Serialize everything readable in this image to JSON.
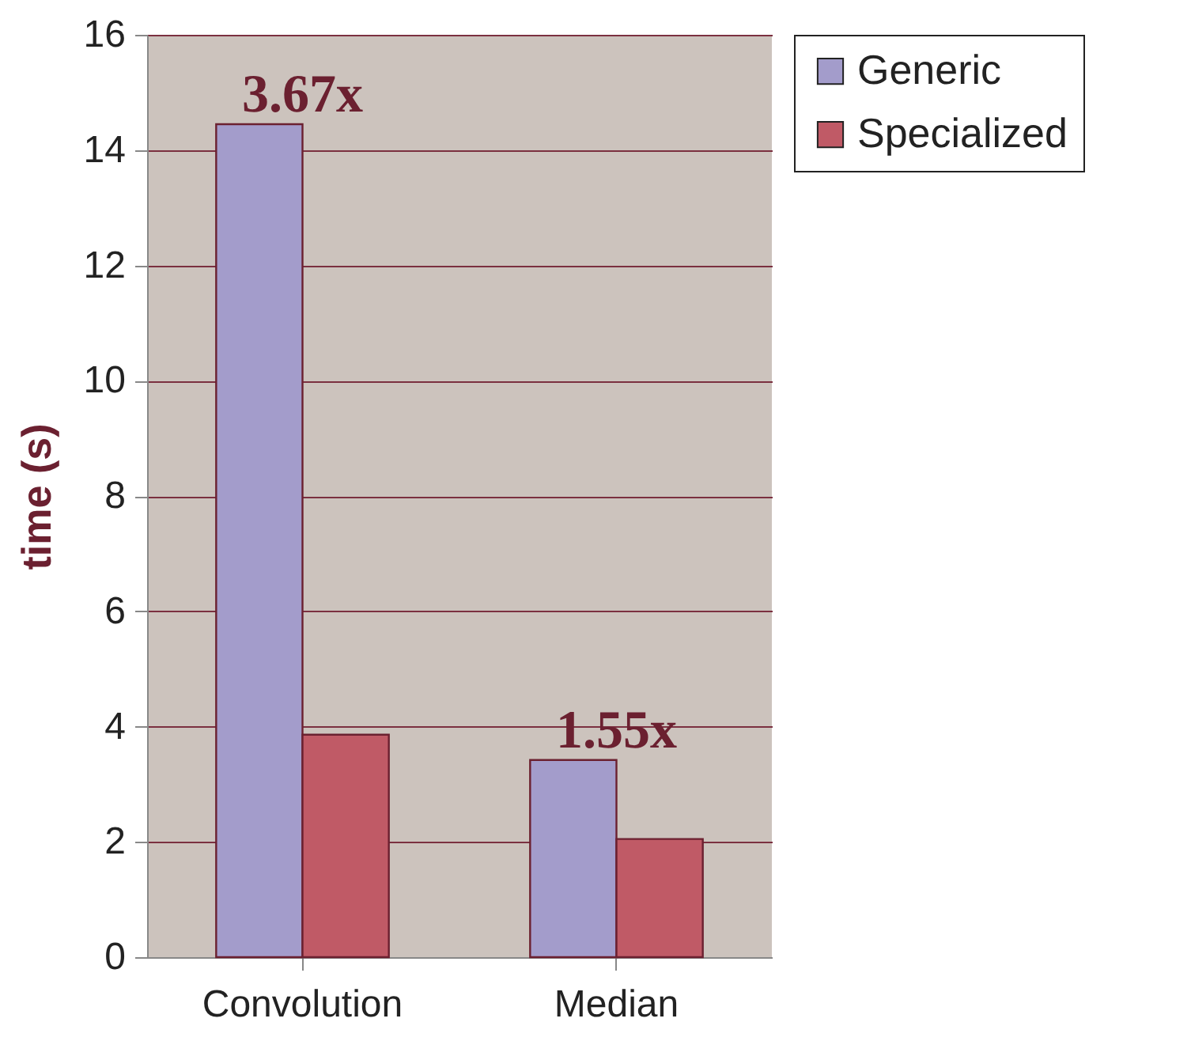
{
  "chart_data": {
    "type": "bar",
    "ylabel": "time (s)",
    "categories": [
      "Convolution",
      "Median"
    ],
    "series": [
      {
        "name": "Generic",
        "color": "#a39ccb",
        "values": [
          14.45,
          3.42
        ]
      },
      {
        "name": "Specialized",
        "color": "#c05a66",
        "values": [
          3.86,
          2.05
        ]
      }
    ],
    "ylim": [
      0,
      16
    ],
    "yticks": [
      0,
      2,
      4,
      6,
      8,
      10,
      12,
      14,
      16
    ],
    "grid": "y",
    "legend": "right",
    "annotations": [
      {
        "text": "3.67x",
        "x": "Convolution",
        "y": 14.45
      },
      {
        "text": "1.55x",
        "x": "Median",
        "y": 3.42
      }
    ]
  }
}
